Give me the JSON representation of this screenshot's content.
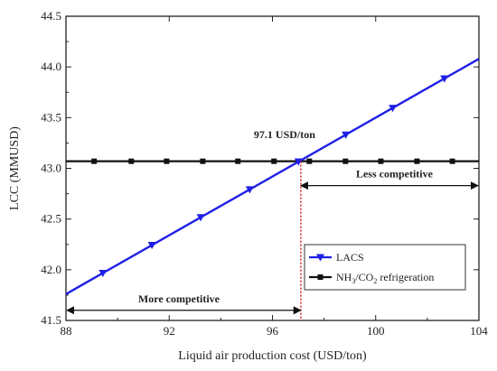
{
  "chart_data": {
    "type": "line",
    "xlabel": "Liquid air production cost (USD/ton)",
    "ylabel": "LCC (MMUSD)",
    "xlim": [
      88,
      104
    ],
    "ylim": [
      41.5,
      44.5
    ],
    "x_ticks": [
      "88",
      "92",
      "96",
      "100",
      "104"
    ],
    "y_ticks": [
      "41.5",
      "42.0",
      "42.5",
      "43.0",
      "43.5",
      "44.0",
      "44.5"
    ],
    "grid": false,
    "legend_position": "bottom-right",
    "series": [
      {
        "name": "LACS",
        "color": "#1f1fe6",
        "marker": "triangle-down",
        "x": [
          88,
          104
        ],
        "y": [
          41.76,
          44.08
        ],
        "marker_x": [
          89.43,
          91.33,
          93.22,
          95.12,
          97.01,
          98.84,
          100.66,
          102.66
        ]
      },
      {
        "name": "NH3/CO2 refrigeration",
        "name_parts": [
          "NH",
          "3",
          "/CO",
          "2",
          " refrigeration"
        ],
        "color": "#111111",
        "marker": "square",
        "x": [
          88,
          104
        ],
        "y": [
          43.07,
          43.07
        ],
        "marker_x": [
          89.09,
          90.53,
          91.9,
          93.3,
          94.66,
          96.06,
          97.43,
          98.83,
          100.2,
          101.6,
          102.97
        ]
      }
    ],
    "vline": {
      "x": 97.1,
      "color": "#d01010",
      "style": "dotted"
    },
    "annotations": {
      "crossover": "97.1 USD/ton",
      "right_arrow": "Less competitive",
      "left_arrow": "More competitive"
    },
    "arrows": {
      "right": {
        "x_from": 97.1,
        "x_to": 104,
        "y": 42.83
      },
      "left": {
        "x_from": 88,
        "x_to": 97.1,
        "y": 41.6
      }
    }
  }
}
